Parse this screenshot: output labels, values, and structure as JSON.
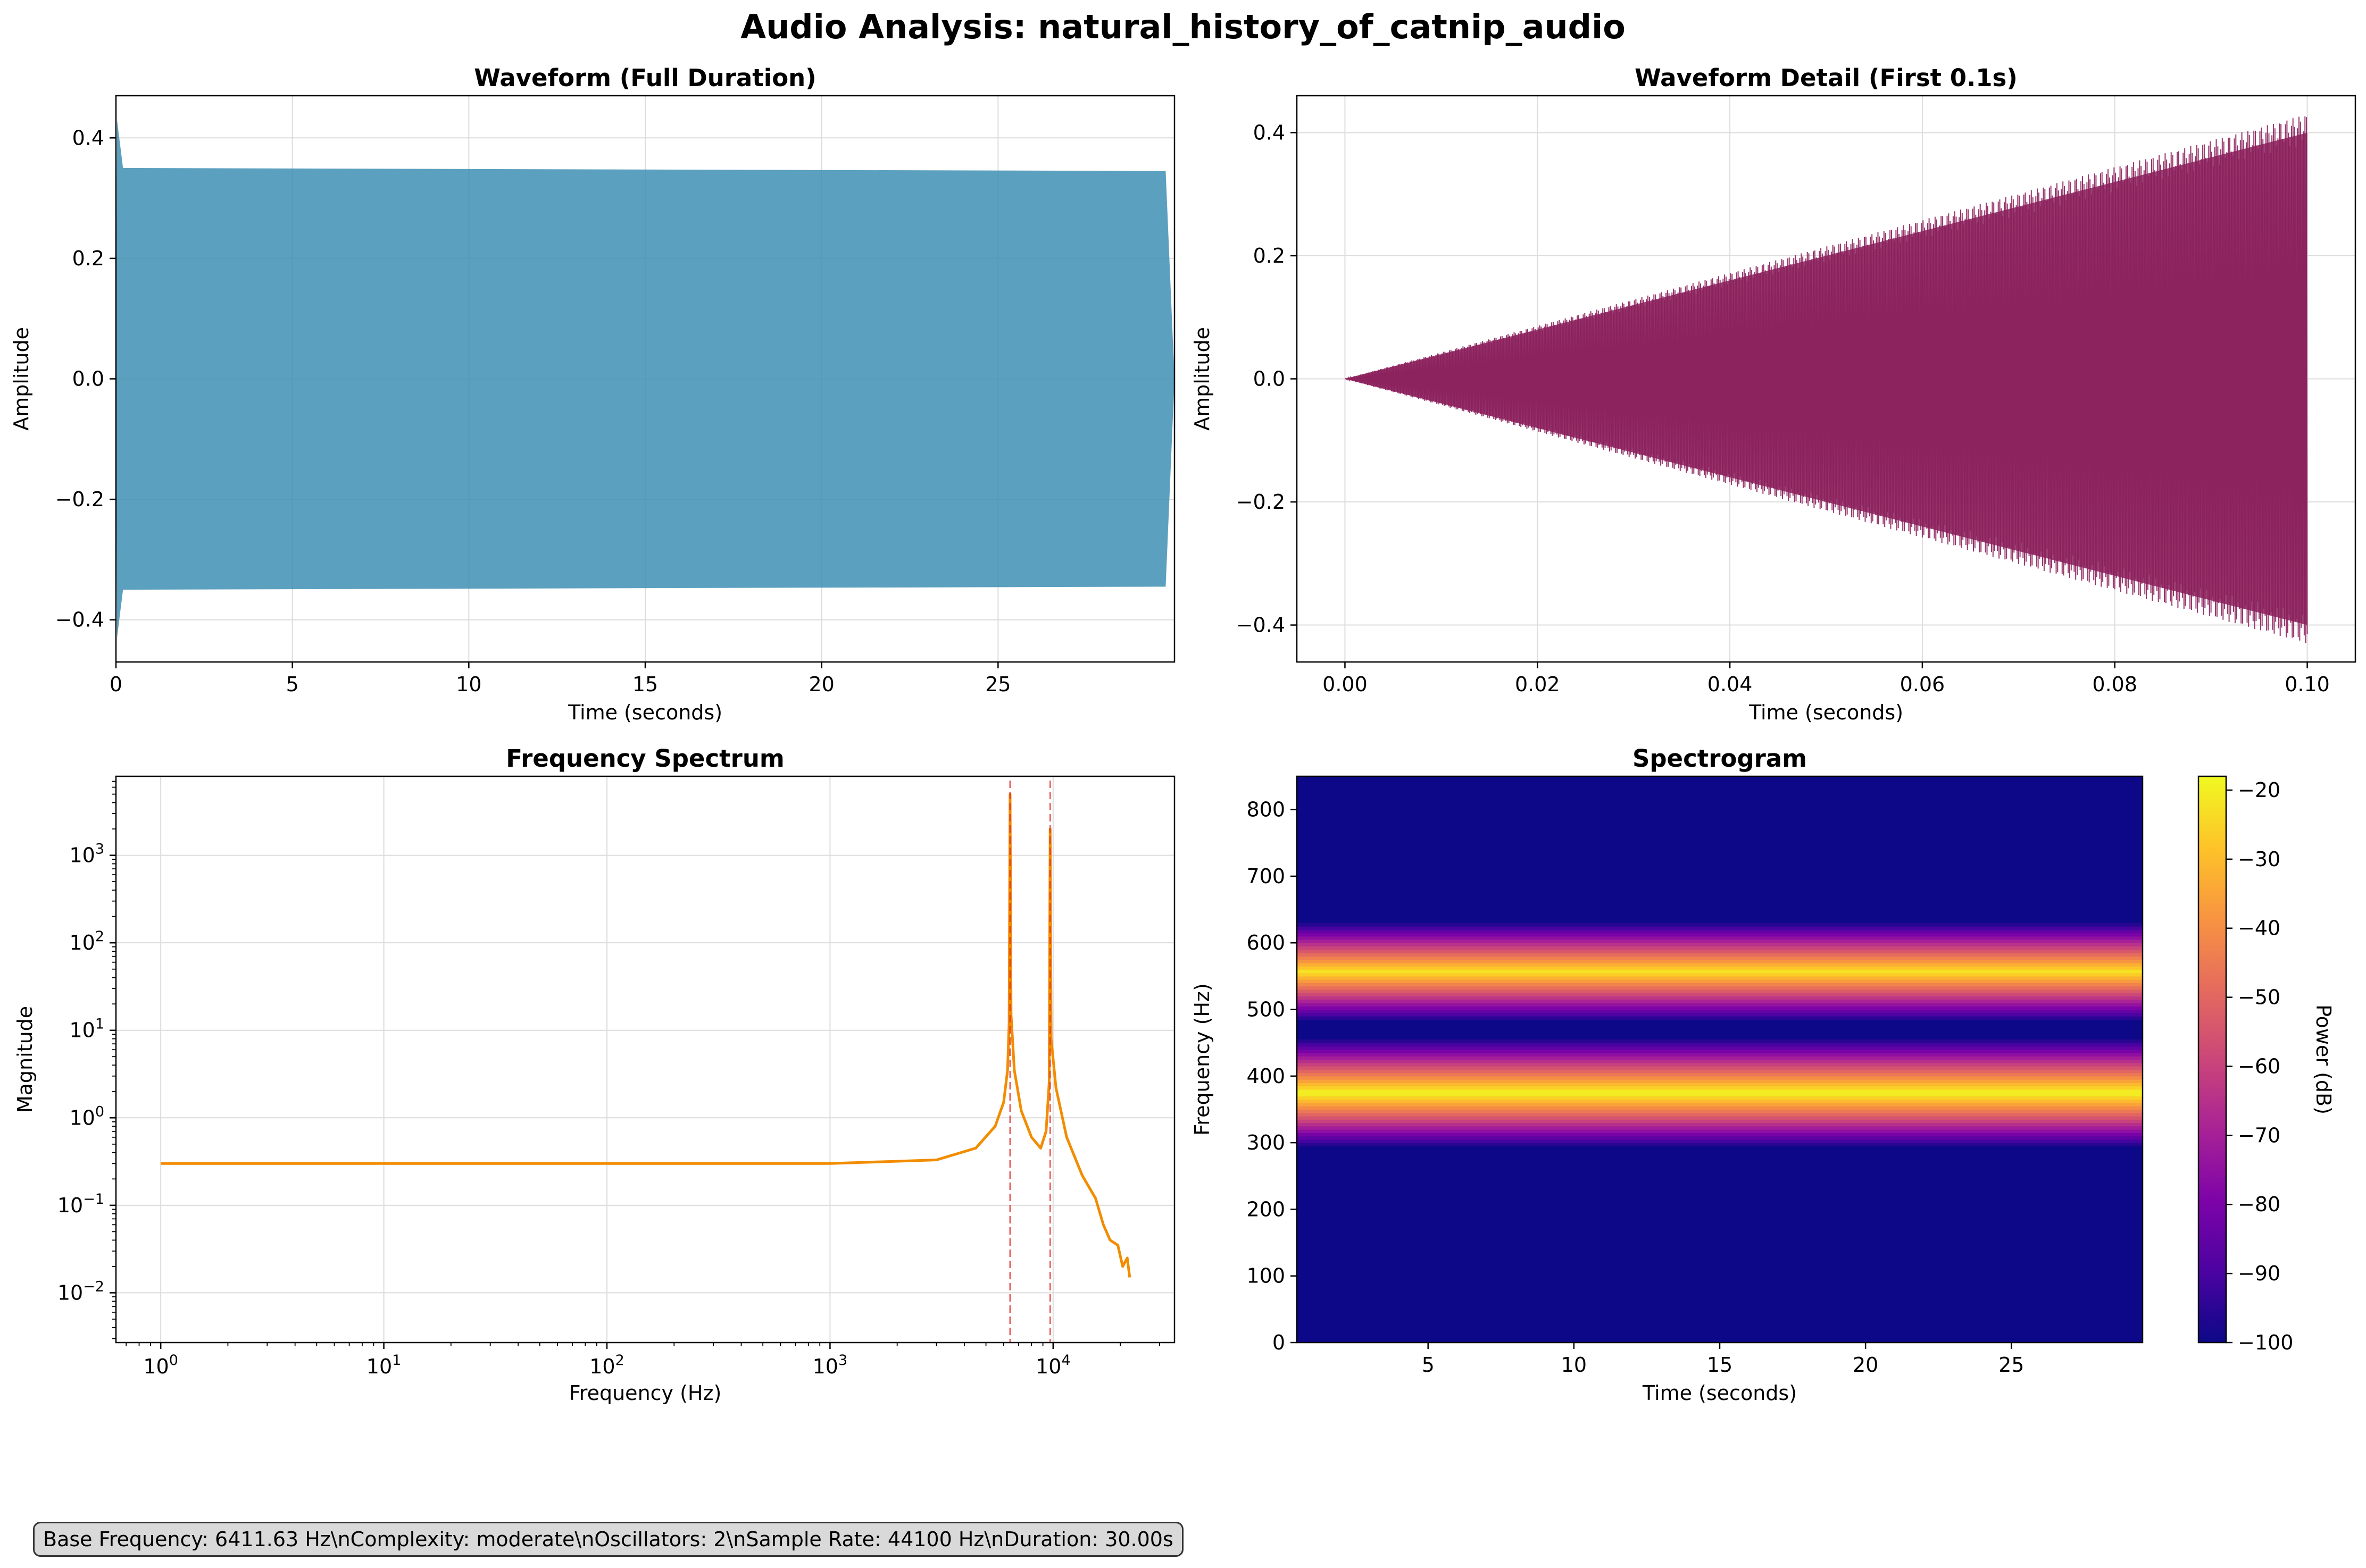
{
  "suptitle": "Audio Analysis: natural_history_of_catnip_audio",
  "info_text": "Base Frequency: 6411.63 Hz\\nComplexity: moderate\\nOscillators: 2\\nSample Rate: 44100 Hz\\nDuration: 30.00s",
  "chart_data": [
    {
      "id": "waveform_full",
      "type": "area",
      "title": "Waveform (Full Duration)",
      "xlabel": "Time (seconds)",
      "ylabel": "Amplitude",
      "xlim": [
        0,
        30
      ],
      "ylim": [
        -0.47,
        0.47
      ],
      "xticks": [
        0,
        5,
        10,
        15,
        20,
        25
      ],
      "yticks": [
        -0.4,
        -0.2,
        0.0,
        0.2,
        0.4
      ],
      "ytick_labels": [
        "−0.4",
        "−0.2",
        "0.0",
        "0.2",
        "0.4"
      ],
      "color": "#3f8fb4",
      "grid": true,
      "envelope": [
        {
          "t": 0.0,
          "max": 0.0,
          "min": 0.0
        },
        {
          "t": 0.03,
          "max": 0.43,
          "min": -0.43
        },
        {
          "t": 0.2,
          "max": 0.35,
          "min": -0.35
        },
        {
          "t": 29.75,
          "max": 0.345,
          "min": -0.345
        },
        {
          "t": 30.0,
          "max": 0.0,
          "min": 0.0
        }
      ]
    },
    {
      "id": "waveform_detail",
      "type": "line",
      "title": "Waveform Detail (First 0.1s)",
      "xlabel": "Time (seconds)",
      "ylabel": "Amplitude",
      "xlim": [
        -0.005,
        0.105
      ],
      "ylim": [
        -0.46,
        0.46
      ],
      "xticks": [
        0.0,
        0.02,
        0.04,
        0.06,
        0.08,
        0.1
      ],
      "xtick_labels": [
        "0.00",
        "0.02",
        "0.04",
        "0.06",
        "0.08",
        "0.10"
      ],
      "yticks": [
        -0.4,
        -0.2,
        0.0,
        0.2,
        0.4
      ],
      "ytick_labels": [
        "−0.4",
        "−0.2",
        "0.0",
        "0.2",
        "0.4"
      ],
      "color": "#8b1f5c",
      "grid": true,
      "envelope": [
        {
          "t": 0.0,
          "amp": 0.0
        },
        {
          "t": 0.1,
          "amp": 0.43
        }
      ]
    },
    {
      "id": "spectrum",
      "type": "line",
      "title": "Frequency Spectrum",
      "xlabel": "Frequency (Hz)",
      "ylabel": "Magnitude",
      "xscale": "log",
      "yscale": "log",
      "xlim": [
        0.63,
        35000
      ],
      "ylim": [
        0.0027,
        8000
      ],
      "xticks": [
        1,
        10,
        100,
        1000,
        10000
      ],
      "xtick_labels": [
        [
          "10",
          "0"
        ],
        [
          "10",
          "1"
        ],
        [
          "10",
          "2"
        ],
        [
          "10",
          "3"
        ],
        [
          "10",
          "4"
        ]
      ],
      "yticks": [
        0.01,
        0.1,
        1,
        10,
        100,
        1000
      ],
      "ytick_labels": [
        [
          "10",
          "−2"
        ],
        [
          "10",
          "−1"
        ],
        [
          "10",
          "0"
        ],
        [
          "10",
          "1"
        ],
        [
          "10",
          "2"
        ],
        [
          "10",
          "3"
        ]
      ],
      "color": "#f28c00",
      "grid": true,
      "peak_lines": [
        6411.63,
        9700
      ],
      "peak_line_color": "#e03030",
      "series": [
        {
          "x": [
            1,
            10,
            100,
            1000,
            3000,
            4500,
            5500,
            6000,
            6250,
            6350,
            6411.63,
            6480,
            6700,
            7200,
            8000,
            8800,
            9300,
            9600,
            9700,
            9800,
            10300,
            11500,
            13500,
            15500,
            16800,
            18000,
            19500,
            20500,
            21500,
            22050
          ],
          "y": [
            0.3,
            0.3,
            0.3,
            0.3,
            0.33,
            0.45,
            0.8,
            1.5,
            3.5,
            12,
            5000,
            15,
            3.5,
            1.2,
            0.6,
            0.45,
            0.7,
            2.5,
            2000,
            8,
            2.2,
            0.6,
            0.22,
            0.12,
            0.06,
            0.04,
            0.035,
            0.02,
            0.025,
            0.015
          ]
        }
      ]
    },
    {
      "id": "spectrogram",
      "type": "heatmap",
      "title": "Spectrogram",
      "xlabel": "Time (seconds)",
      "ylabel": "Frequency (Hz)",
      "xlim": [
        0.5,
        29.5
      ],
      "ylim": [
        0,
        850
      ],
      "xticks": [
        5,
        10,
        15,
        20,
        25
      ],
      "yticks": [
        0,
        100,
        200,
        300,
        400,
        500,
        600,
        700,
        800
      ],
      "colormap": "plasma",
      "colorbar": {
        "label": "Power (dB)",
        "range": [
          -100,
          -18
        ],
        "ticks": [
          -100,
          -90,
          -80,
          -70,
          -60,
          -50,
          -40,
          -30,
          -20
        ],
        "tick_labels": [
          "−100",
          "−90",
          "−80",
          "−70",
          "−60",
          "−50",
          "−40",
          "−30",
          "−20"
        ]
      },
      "bands": [
        {
          "center_hz": 375,
          "peak_db": -18,
          "falloff_db_per_hz": 1.0
        },
        {
          "center_hz": 557,
          "peak_db": -22,
          "falloff_db_per_hz": 1.05
        }
      ],
      "background_db": -100
    }
  ]
}
